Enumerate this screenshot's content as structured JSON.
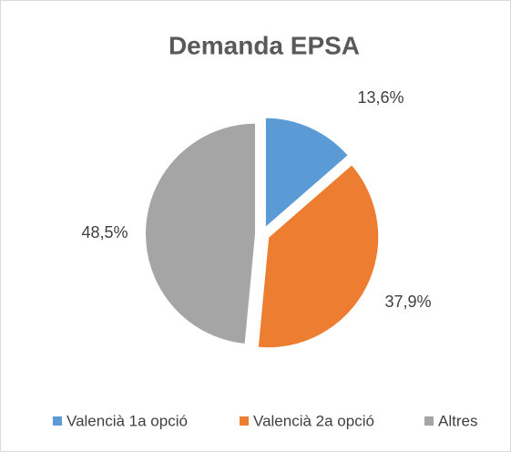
{
  "chart_data": {
    "type": "pie",
    "title": "Demanda EPSA",
    "categories": [
      "Valencià 1a opció",
      "Valencià 2a opció",
      "Altres"
    ],
    "values": [
      13.6,
      37.9,
      48.5
    ],
    "value_labels": [
      "13,6%",
      "37,9%",
      "48,5%"
    ],
    "colors": [
      "#5b9bd5",
      "#ed7d31",
      "#a5a5a5"
    ],
    "legend": "bottom"
  }
}
